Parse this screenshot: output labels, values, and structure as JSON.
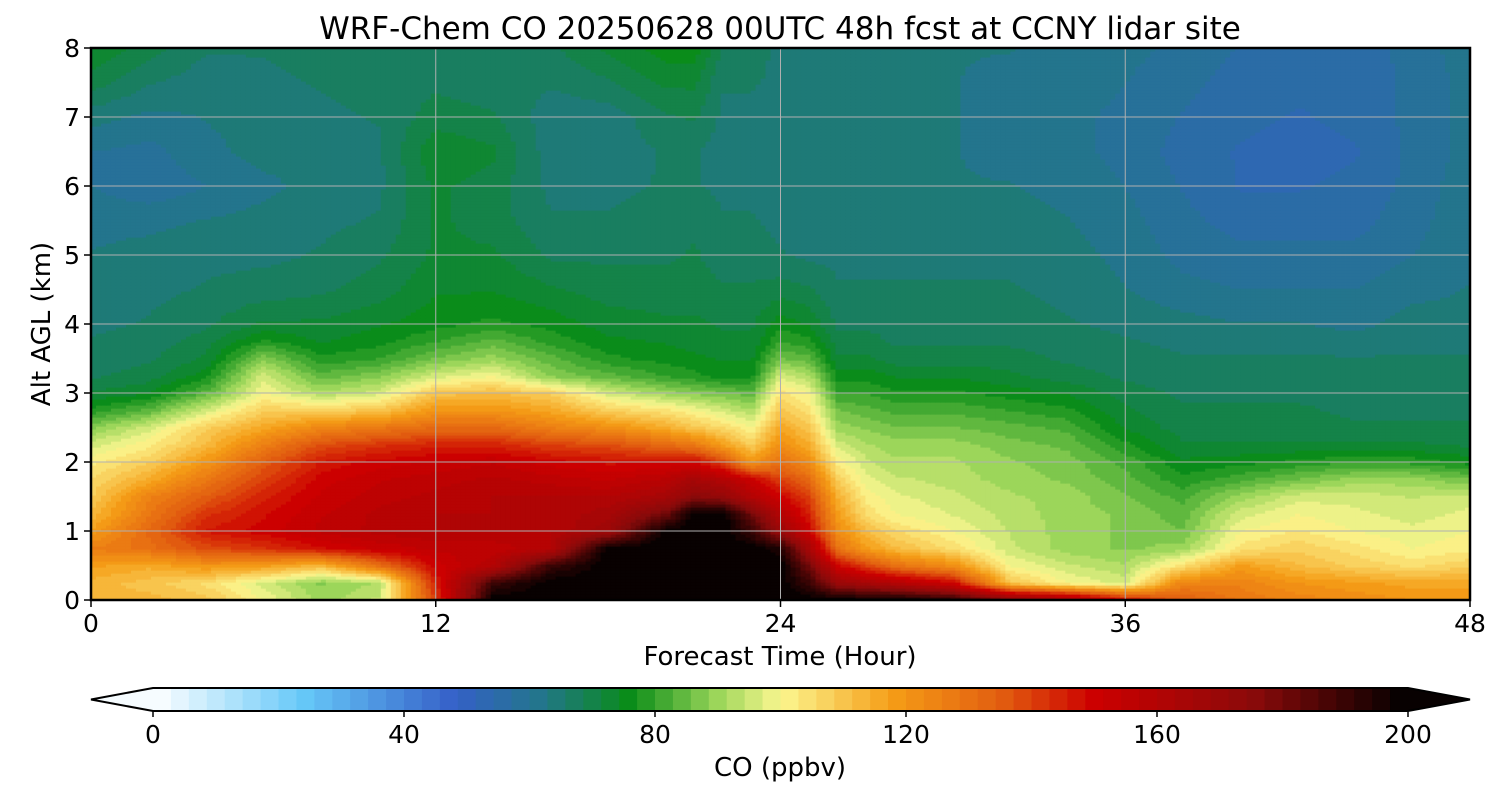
{
  "chart_data": {
    "type": "heatmap",
    "title": "WRF-Chem CO  20250628 00UTC 48h fcst at CCNY lidar site",
    "xlabel": "Forecast Time (Hour)",
    "ylabel": "Alt AGL (km)",
    "xlim": [
      0,
      48
    ],
    "ylim": [
      0,
      8
    ],
    "x_ticks": [
      0,
      12,
      24,
      36,
      48
    ],
    "y_ticks": [
      0,
      1,
      2,
      3,
      4,
      5,
      6,
      7,
      8
    ],
    "grid": true,
    "colorbar": {
      "label": "CO  (ppbv)",
      "min": 0,
      "max": 200,
      "ticks": [
        0,
        40,
        80,
        120,
        160,
        200
      ],
      "extend": "both",
      "levels": 70,
      "colorstops": [
        {
          "v": 0,
          "c": "#ffffff"
        },
        {
          "v": 24,
          "c": "#66c8f8"
        },
        {
          "v": 48,
          "c": "#3560c8"
        },
        {
          "v": 62,
          "c": "#22768a"
        },
        {
          "v": 76,
          "c": "#0a8c18"
        },
        {
          "v": 90,
          "c": "#9cd65a"
        },
        {
          "v": 100,
          "c": "#fbf790"
        },
        {
          "v": 118,
          "c": "#f59c16"
        },
        {
          "v": 135,
          "c": "#e25e10"
        },
        {
          "v": 150,
          "c": "#cc0000"
        },
        {
          "v": 175,
          "c": "#8c0a0a"
        },
        {
          "v": 200,
          "c": "#000000"
        }
      ]
    },
    "x": [
      0,
      2,
      4,
      6,
      8,
      10,
      12,
      14,
      16,
      18,
      20,
      21,
      22,
      23,
      24,
      25,
      26,
      27,
      28,
      30,
      32,
      34,
      36,
      38,
      40,
      42,
      44,
      46,
      48
    ],
    "y": [
      0,
      0.25,
      0.5,
      0.75,
      1.0,
      1.25,
      1.5,
      1.75,
      2.0,
      2.25,
      2.5,
      2.75,
      3.0,
      3.25,
      3.5,
      3.75,
      4.0,
      4.5,
      5.0,
      5.5,
      6.0,
      6.5,
      7.0,
      7.5,
      8.0
    ],
    "z": [
      [
        112,
        113,
        110,
        100,
        90,
        95,
        140,
        200,
        200,
        200,
        200,
        200,
        200,
        200,
        200,
        200,
        200,
        200,
        200,
        195,
        180,
        170,
        150,
        135,
        128,
        125,
        122,
        120,
        120
      ],
      [
        113,
        110,
        105,
        96,
        88,
        92,
        145,
        190,
        200,
        200,
        200,
        200,
        200,
        200,
        200,
        190,
        170,
        165,
        160,
        150,
        110,
        100,
        96,
        125,
        125,
        120,
        118,
        116,
        116
      ],
      [
        118,
        115,
        120,
        118,
        112,
        130,
        150,
        160,
        190,
        200,
        200,
        200,
        200,
        200,
        200,
        180,
        150,
        140,
        130,
        122,
        100,
        95,
        92,
        105,
        118,
        112,
        108,
        105,
        108
      ],
      [
        126,
        130,
        138,
        142,
        148,
        152,
        155,
        155,
        160,
        200,
        200,
        200,
        200,
        200,
        195,
        165,
        130,
        118,
        112,
        105,
        95,
        90,
        88,
        90,
        104,
        108,
        104,
        100,
        102
      ],
      [
        118,
        132,
        146,
        150,
        155,
        158,
        160,
        160,
        160,
        168,
        200,
        200,
        200,
        190,
        170,
        150,
        122,
        112,
        106,
        100,
        94,
        90,
        88,
        86,
        100,
        103,
        100,
        98,
        100
      ],
      [
        112,
        128,
        142,
        148,
        154,
        158,
        160,
        160,
        160,
        165,
        180,
        200,
        200,
        180,
        160,
        145,
        118,
        105,
        100,
        97,
        93,
        90,
        88,
        84,
        96,
        100,
        98,
        96,
        98
      ],
      [
        108,
        125,
        135,
        145,
        152,
        156,
        158,
        160,
        160,
        160,
        165,
        175,
        172,
        160,
        150,
        140,
        114,
        102,
        98,
        95,
        92,
        90,
        86,
        82,
        90,
        96,
        96,
        94,
        96
      ],
      [
        106,
        115,
        128,
        140,
        150,
        154,
        156,
        158,
        156,
        154,
        158,
        165,
        160,
        152,
        140,
        132,
        108,
        98,
        95,
        93,
        90,
        88,
        84,
        78,
        82,
        86,
        90,
        90,
        86
      ],
      [
        102,
        108,
        120,
        135,
        146,
        150,
        152,
        154,
        150,
        148,
        148,
        150,
        140,
        120,
        130,
        122,
        102,
        95,
        92,
        92,
        89,
        87,
        82,
        75,
        76,
        78,
        80,
        79,
        76
      ],
      [
        96,
        102,
        112,
        126,
        138,
        142,
        145,
        145,
        140,
        138,
        132,
        128,
        118,
        108,
        122,
        115,
        96,
        92,
        90,
        90,
        87,
        85,
        78,
        72,
        72,
        72,
        72,
        72,
        71
      ],
      [
        88,
        96,
        108,
        116,
        124,
        128,
        132,
        132,
        126,
        122,
        115,
        110,
        106,
        100,
        116,
        110,
        90,
        88,
        86,
        86,
        84,
        82,
        74,
        70,
        70,
        70,
        69,
        69,
        69
      ],
      [
        78,
        84,
        96,
        108,
        108,
        110,
        120,
        120,
        116,
        108,
        104,
        100,
        96,
        92,
        110,
        104,
        86,
        84,
        82,
        82,
        80,
        78,
        72,
        69,
        69,
        69,
        68,
        68,
        68
      ],
      [
        72,
        74,
        84,
        100,
        92,
        96,
        110,
        112,
        108,
        96,
        90,
        88,
        86,
        84,
        104,
        100,
        80,
        80,
        78,
        78,
        76,
        74,
        70,
        68,
        68,
        68,
        68,
        68,
        67
      ],
      [
        68,
        70,
        76,
        96,
        84,
        88,
        96,
        100,
        88,
        84,
        80,
        78,
        76,
        76,
        96,
        92,
        76,
        76,
        74,
        74,
        72,
        70,
        68,
        67,
        67,
        67,
        67,
        67,
        66
      ],
      [
        67,
        68,
        72,
        88,
        78,
        80,
        86,
        90,
        84,
        78,
        76,
        75,
        74,
        74,
        86,
        84,
        72,
        72,
        70,
        70,
        70,
        68,
        67,
        66,
        66,
        66,
        66,
        66,
        66
      ],
      [
        66,
        67,
        70,
        78,
        74,
        76,
        80,
        84,
        79,
        75,
        74,
        73,
        72,
        72,
        80,
        78,
        70,
        70,
        68,
        68,
        68,
        67,
        66,
        65,
        65,
        65,
        64,
        65,
        65
      ],
      [
        65,
        66,
        68,
        72,
        72,
        74,
        76,
        78,
        76,
        73,
        72,
        72,
        71,
        71,
        76,
        74,
        68,
        68,
        67,
        67,
        67,
        66,
        65,
        64,
        63,
        63,
        62,
        64,
        64
      ],
      [
        64,
        65,
        66,
        67,
        68,
        70,
        74,
        74,
        72,
        70,
        70,
        70,
        69,
        69,
        70,
        69,
        66,
        66,
        66,
        66,
        66,
        65,
        63,
        61,
        60,
        60,
        60,
        62,
        63
      ],
      [
        63,
        64,
        65,
        65,
        66,
        68,
        72,
        72,
        68,
        68,
        68,
        69,
        67,
        67,
        66,
        65,
        65,
        65,
        65,
        65,
        65,
        64,
        62,
        59,
        58,
        58,
        58,
        60,
        62
      ],
      [
        62,
        62,
        63,
        64,
        65,
        66,
        72,
        70,
        66,
        66,
        67,
        68,
        66,
        66,
        65,
        64,
        64,
        64,
        64,
        64,
        64,
        63,
        61,
        58,
        56,
        56,
        56,
        59,
        62
      ],
      [
        60,
        58,
        60,
        62,
        64,
        65,
        72,
        70,
        65,
        65,
        66,
        66,
        65,
        65,
        64,
        64,
        63,
        63,
        63,
        63,
        63,
        62,
        60,
        57,
        54,
        54,
        55,
        58,
        62
      ],
      [
        60,
        59,
        62,
        64,
        64,
        65,
        74,
        72,
        64,
        64,
        66,
        66,
        64,
        64,
        64,
        64,
        63,
        63,
        63,
        63,
        62,
        61,
        59,
        56,
        54,
        53,
        54,
        58,
        61
      ],
      [
        64,
        62,
        63,
        64,
        65,
        66,
        70,
        69,
        64,
        64,
        68,
        69,
        65,
        65,
        64,
        64,
        64,
        64,
        63,
        63,
        62,
        61,
        59,
        57,
        55,
        54,
        55,
        58,
        61
      ],
      [
        70,
        66,
        64,
        65,
        66,
        67,
        68,
        67,
        66,
        68,
        72,
        72,
        66,
        66,
        65,
        64,
        64,
        64,
        63,
        63,
        62,
        62,
        60,
        58,
        56,
        55,
        55,
        58,
        61
      ],
      [
        74,
        70,
        66,
        66,
        67,
        68,
        68,
        68,
        68,
        72,
        76,
        76,
        68,
        67,
        65,
        65,
        65,
        65,
        64,
        63,
        63,
        62,
        61,
        59,
        57,
        56,
        56,
        58,
        62
      ]
    ]
  }
}
